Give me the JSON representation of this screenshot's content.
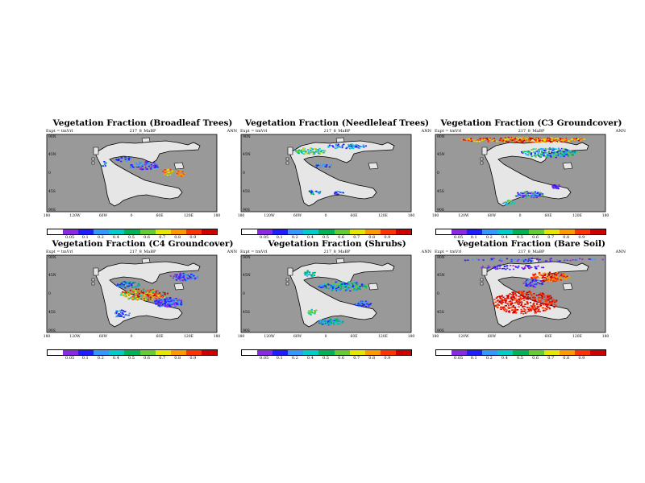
{
  "figure": {
    "experiment_label": "Expt = tmVrl",
    "subtitle": "217_8_MaBP",
    "season": "ANN"
  },
  "colors": {
    "ocean": "#999999",
    "coast": "#000000",
    "colorbar": [
      "#ffffff",
      "#8a2be2",
      "#1e1eff",
      "#3399ff",
      "#00cccc",
      "#00b359",
      "#66cc33",
      "#e6e600",
      "#ff9900",
      "#ff3300",
      "#cc0000"
    ]
  },
  "chart_data": [
    {
      "type": "heatmap",
      "title": "Vegetation Fraction (Broadleaf Trees)",
      "y_ticks": [
        "90N",
        "45N",
        "0",
        "45S",
        "90S"
      ],
      "x_ticks": [
        "180",
        "120W",
        "60W",
        "0",
        "60E",
        "120E",
        "180"
      ],
      "color_levels": [
        "0.05",
        "0.1",
        "0.2",
        "0.4",
        "0.5",
        "0.6",
        "0.7",
        "0.8",
        "0.9"
      ],
      "ylim": [
        -90,
        90
      ],
      "xlim": [
        -180,
        180
      ]
    },
    {
      "type": "heatmap",
      "title": "Vegetation Fraction (Needleleaf Trees)",
      "y_ticks": [
        "90N",
        "45N",
        "0",
        "45S",
        "90S"
      ],
      "x_ticks": [
        "180",
        "120W",
        "60W",
        "0",
        "60E",
        "120E",
        "180"
      ],
      "color_levels": [
        "0.05",
        "0.1",
        "0.2",
        "0.4",
        "0.5",
        "0.6",
        "0.7",
        "0.8",
        "0.9"
      ],
      "ylim": [
        -90,
        90
      ],
      "xlim": [
        -180,
        180
      ]
    },
    {
      "type": "heatmap",
      "title": "Vegetation Fraction (C3 Groundcover)",
      "y_ticks": [
        "90N",
        "45N",
        "0",
        "45S",
        "90S"
      ],
      "x_ticks": [
        "180",
        "120W",
        "60W",
        "0",
        "60E",
        "120E",
        "180"
      ],
      "color_levels": [
        "0.05",
        "0.1",
        "0.2",
        "0.4",
        "0.5",
        "0.6",
        "0.7",
        "0.8",
        "0.9"
      ],
      "ylim": [
        -90,
        90
      ],
      "xlim": [
        -180,
        180
      ]
    },
    {
      "type": "heatmap",
      "title": "Vegetation Fraction (C4 Groundcover)",
      "y_ticks": [
        "90N",
        "45N",
        "0",
        "45S",
        "90S"
      ],
      "x_ticks": [
        "180",
        "120W",
        "60W",
        "0",
        "60E",
        "120E",
        "180"
      ],
      "color_levels": [
        "0.05",
        "0.1",
        "0.2",
        "0.4",
        "0.5",
        "0.6",
        "0.7",
        "0.8",
        "0.9"
      ],
      "ylim": [
        -90,
        90
      ],
      "xlim": [
        -180,
        180
      ]
    },
    {
      "type": "heatmap",
      "title": "Vegetation Fraction (Shrubs)",
      "y_ticks": [
        "90N",
        "45N",
        "0",
        "45S",
        "90S"
      ],
      "x_ticks": [
        "180",
        "120W",
        "60W",
        "0",
        "60E",
        "120E",
        "180"
      ],
      "color_levels": [
        "0.05",
        "0.1",
        "0.2",
        "0.4",
        "0.5",
        "0.6",
        "0.7",
        "0.8",
        "0.9"
      ],
      "ylim": [
        -90,
        90
      ],
      "xlim": [
        -180,
        180
      ]
    },
    {
      "type": "heatmap",
      "title": "Vegetation Fraction (Bare Soil)",
      "y_ticks": [
        "90N",
        "45N",
        "0",
        "45S",
        "90S"
      ],
      "x_ticks": [
        "180",
        "120W",
        "60W",
        "0",
        "60E",
        "120E",
        "180"
      ],
      "color_levels": [
        "0.05",
        "0.1",
        "0.2",
        "0.4",
        "0.5",
        "0.6",
        "0.7",
        "0.8",
        "0.9"
      ],
      "ylim": [
        -90,
        90
      ],
      "xlim": [
        -180,
        180
      ]
    }
  ]
}
